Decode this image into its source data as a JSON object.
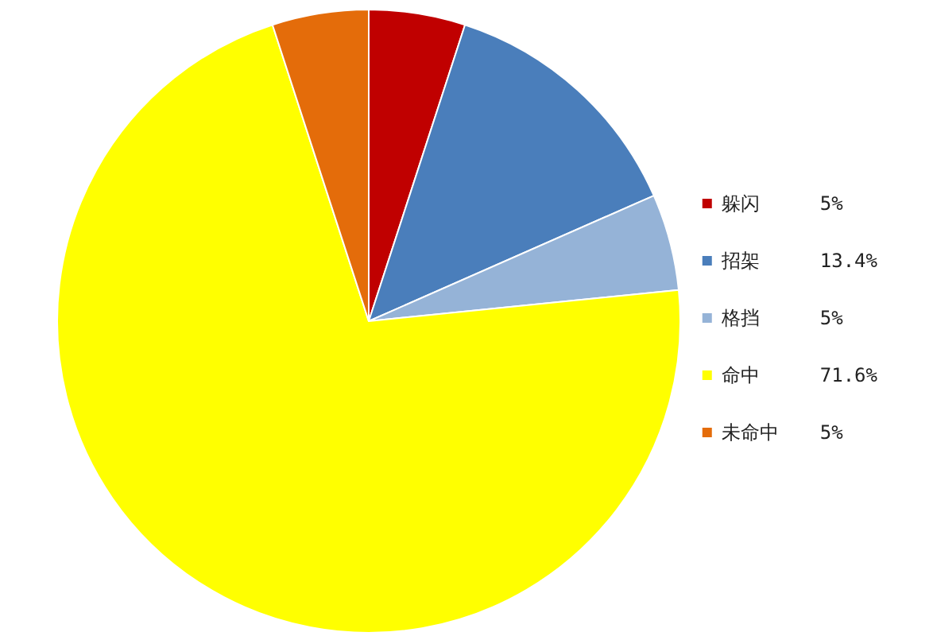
{
  "chart_data": {
    "type": "pie",
    "categories": [
      "躲闪",
      "招架",
      "格挡",
      "命中",
      "未命中"
    ],
    "values": [
      5,
      13.4,
      5,
      71.6,
      5
    ],
    "colors": [
      "#c00000",
      "#4a7ebb",
      "#95b3d7",
      "#ffff00",
      "#e46c0a"
    ],
    "value_labels": [
      "5%",
      "13.4%",
      "5%",
      "71.6%",
      "5%"
    ],
    "legend": "right"
  }
}
